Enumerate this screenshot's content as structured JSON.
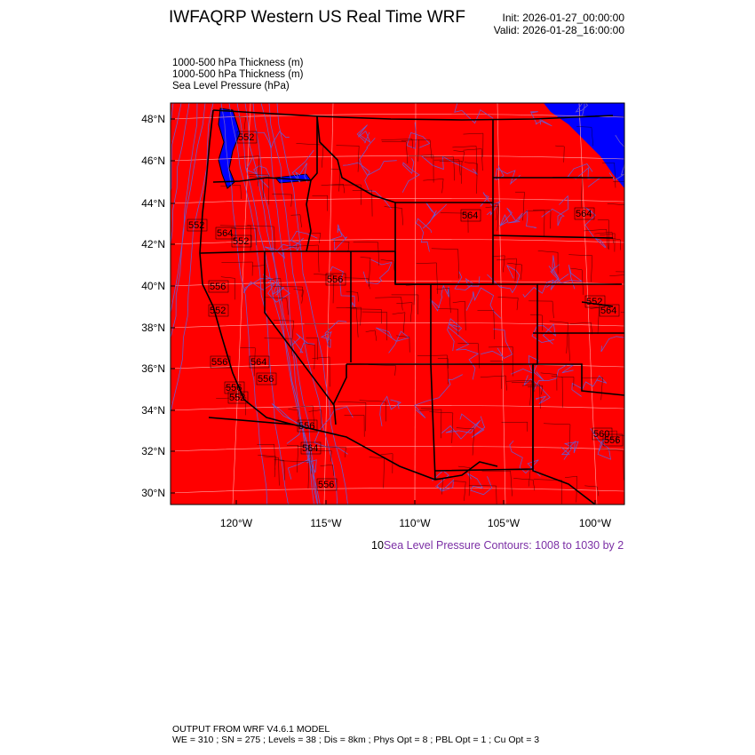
{
  "header": {
    "title": "IWFAQRP Western US Real Time WRF",
    "init": "Init: 2026-01-27_00:00:00",
    "valid": "Valid: 2026-01-28_16:00:00"
  },
  "fields": [
    "1000-500 hPa Thickness   (m)",
    "1000-500 hPa Thickness   (m)",
    "Sea Level Pressure   (hPa)"
  ],
  "map": {
    "lat_labels": [
      "48°N",
      "46°N",
      "44°N",
      "42°N",
      "40°N",
      "38°N",
      "36°N",
      "34°N",
      "32°N",
      "30°N"
    ],
    "lon_labels": [
      "120°W",
      "115°W",
      "110°W",
      "105°W",
      "100°W"
    ],
    "colors": {
      "warm_fill": "#ff0000",
      "cold_fill": "#0000ff",
      "slp_contour": "#6a5acd",
      "border": "#000000"
    },
    "contour_labels": [
      "552",
      "564",
      "564",
      "552",
      "564",
      "560",
      "556",
      "556",
      "564",
      "556",
      "556",
      "552",
      "564",
      "552",
      "556",
      "552",
      "556",
      "564",
      "556",
      "556",
      "552"
    ]
  },
  "contour_info": {
    "prefix": "10",
    "text": "Sea Level Pressure Contours: 1008 to 1030 by 2"
  },
  "footer": {
    "line1": "OUTPUT FROM WRF V4.6.1 MODEL",
    "line2": "WE = 310 ; SN = 275 ; Levels = 38 ; Dis = 8km ; Phys Opt = 8 ; PBL Opt = 1 ; Cu Opt = 3"
  }
}
